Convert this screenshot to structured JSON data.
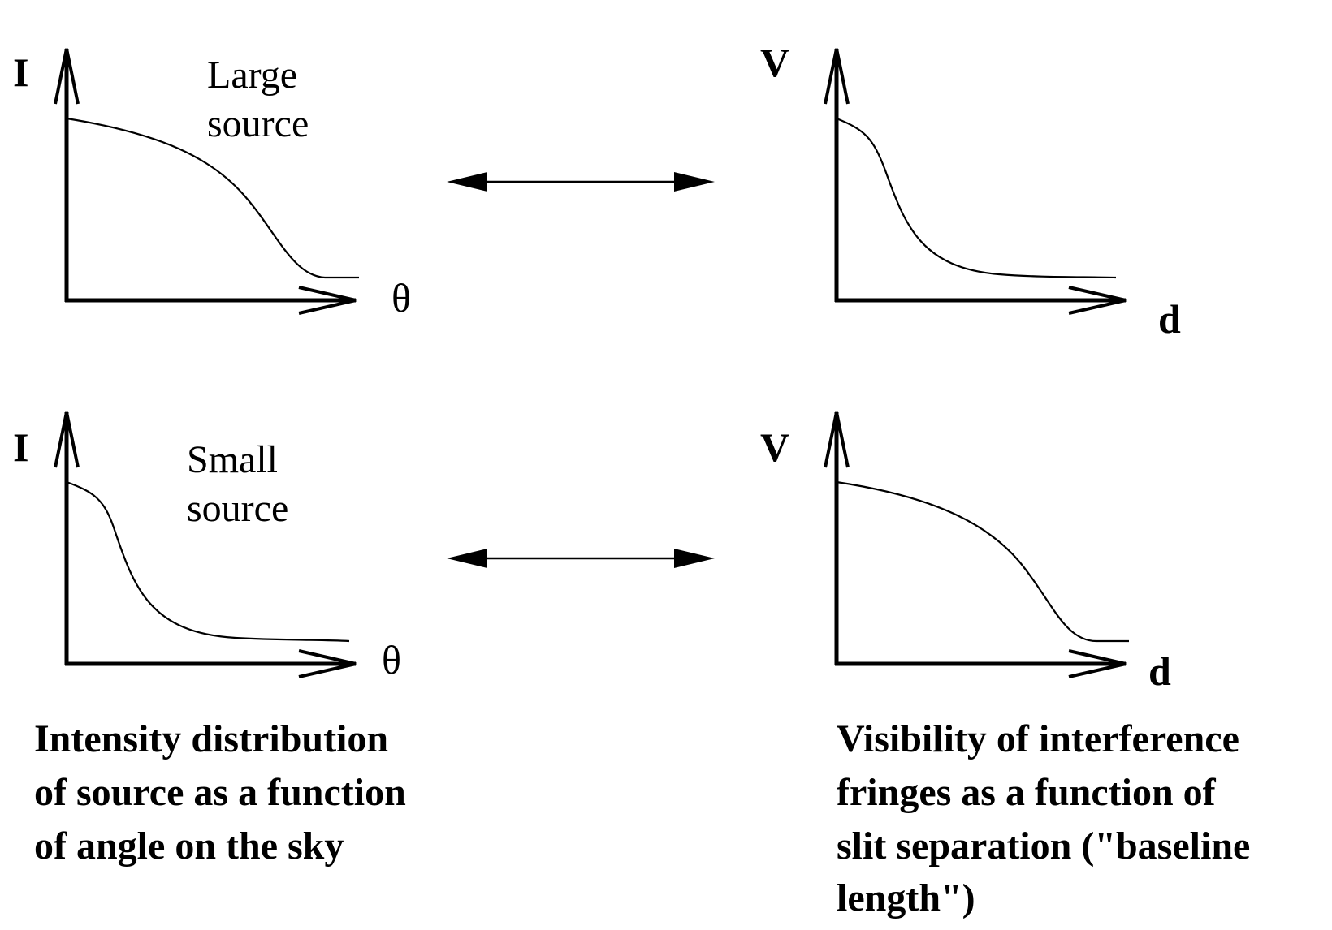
{
  "top_left": {
    "y_label": "I",
    "x_label": "θ",
    "source_label_line1": "Large",
    "source_label_line2": "source"
  },
  "top_right": {
    "y_label": "V",
    "x_label": "d"
  },
  "bottom_left": {
    "y_label": "I",
    "x_label": "θ",
    "source_label_line1": "Small",
    "source_label_line2": "source"
  },
  "bottom_right": {
    "y_label": "V",
    "x_label": "d"
  },
  "caption_left": {
    "line1": "Intensity distribution",
    "line2": "of source as a function",
    "line3": "of angle on the sky"
  },
  "caption_right": {
    "line1": "Visibility of interference",
    "line2": "fringes as a function of",
    "line3": "slit separation (\"baseline",
    "line4": "length\")"
  }
}
